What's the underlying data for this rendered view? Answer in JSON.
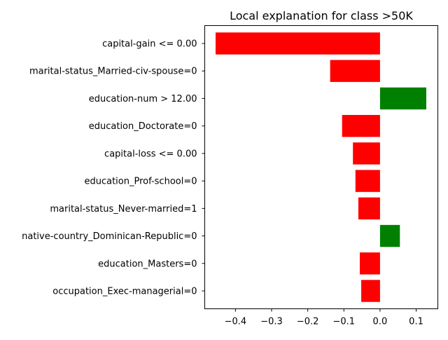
{
  "chart_data": {
    "type": "bar",
    "orientation": "horizontal",
    "title": "Local explanation for class >50K",
    "xlabel": "",
    "ylabel": "",
    "categories": [
      "capital-gain <= 0.00",
      "marital-status_Married-civ-spouse=0",
      "education-num > 12.00",
      "education_Doctorate=0",
      "capital-loss <= 0.00",
      "education_Prof-school=0",
      "marital-status_Never-married=1",
      "native-country_Dominican-Republic=0",
      "education_Masters=0",
      "occupation_Exec-managerial=0"
    ],
    "values": [
      -0.455,
      -0.138,
      0.128,
      -0.105,
      -0.075,
      -0.068,
      -0.06,
      0.055,
      -0.056,
      -0.052
    ],
    "xlim": [
      -0.485,
      0.16
    ],
    "xticks": [
      -0.4,
      -0.3,
      -0.2,
      -0.1,
      0.0,
      0.1
    ],
    "xtick_labels": [
      "−0.4",
      "−0.3",
      "−0.2",
      "−0.1",
      "0.0",
      "0.1"
    ],
    "grid": false,
    "legend": "none",
    "colors": {
      "positive": "#008000",
      "negative": "#ff0000"
    }
  }
}
